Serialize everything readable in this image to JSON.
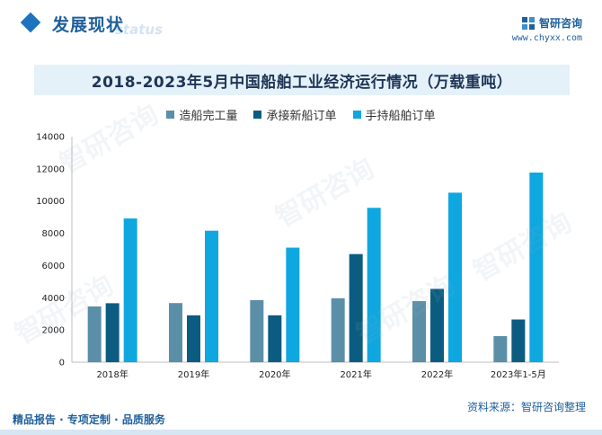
{
  "header": {
    "title": "发展现状",
    "ghost": "status",
    "brand": "智研咨询",
    "website": "www.chyxx.com"
  },
  "watermark_text": "智研咨询",
  "chart_data": {
    "type": "bar",
    "title": "2018-2023年5月中国船舶工业经济运行情况（万载重吨）",
    "categories": [
      "2018年",
      "2019年",
      "2020年",
      "2021年",
      "2022年",
      "2023年1-5月"
    ],
    "series": [
      {
        "name": "造船完工量",
        "color": "#5b8fa8",
        "values": [
          3460,
          3670,
          3850,
          3970,
          3790,
          1620
        ]
      },
      {
        "name": "承接新船订单",
        "color": "#0b5c80",
        "values": [
          3660,
          2910,
          2910,
          6710,
          4550,
          2650
        ]
      },
      {
        "name": "手持船舶订单",
        "color": "#0fa7e0",
        "values": [
          8920,
          8160,
          7110,
          9580,
          10520,
          11770
        ]
      }
    ],
    "yticks": [
      "14000",
      "12000",
      "10000",
      "8000",
      "6000",
      "4000",
      "2000",
      "0"
    ],
    "ylim": [
      0,
      14000
    ],
    "xlabel": "",
    "ylabel": ""
  },
  "footer": {
    "left": "精品报告 · 专项定制 · 品质服务",
    "source": "资料来源：智研咨询整理"
  }
}
